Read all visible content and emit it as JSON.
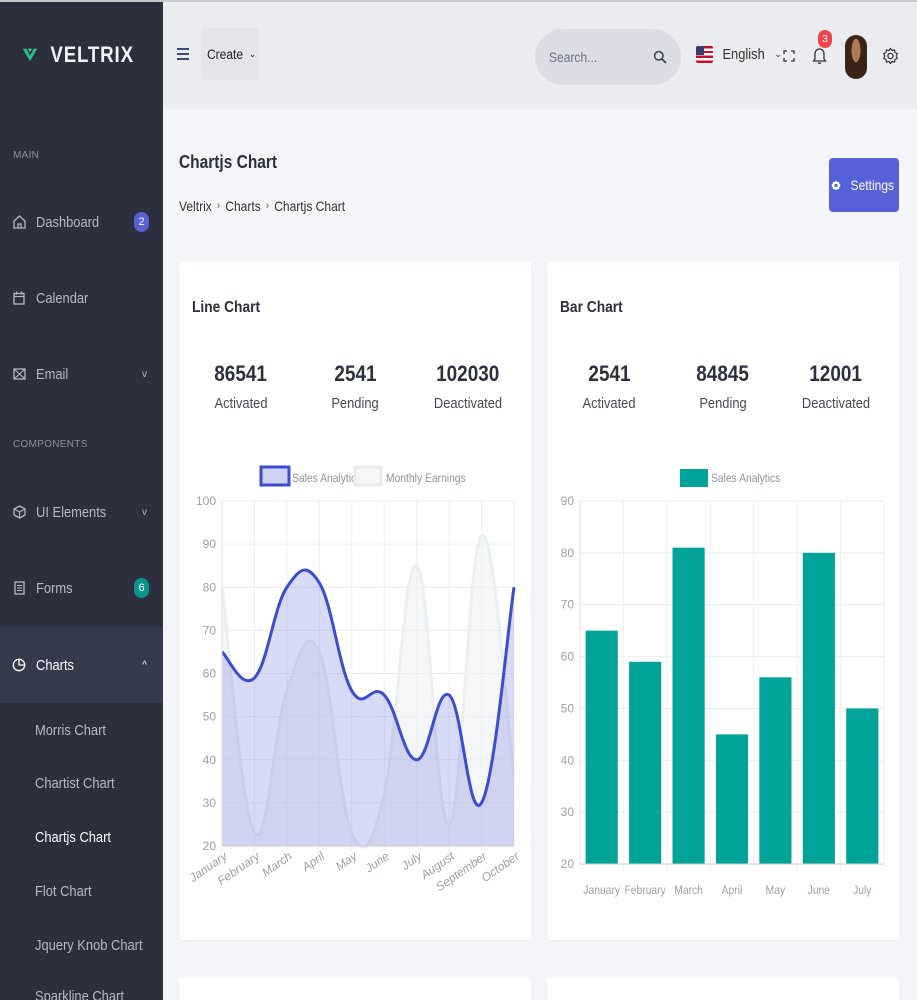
{
  "brand": {
    "name": "VELTRIX"
  },
  "sidebar": {
    "sections": [
      {
        "title": "MAIN"
      },
      {
        "title": "COMPONENTS"
      }
    ],
    "items": [
      {
        "label": "Dashboard",
        "icon": "home-icon",
        "badge": "2",
        "badge_color": "#5661d8"
      },
      {
        "label": "Calendar",
        "icon": "calendar-icon"
      },
      {
        "label": "Email",
        "icon": "mail-icon",
        "chevron": "v"
      },
      {
        "label": "UI Elements",
        "icon": "box-icon",
        "chevron": "v"
      },
      {
        "label": "Forms",
        "icon": "form-icon",
        "badge": "6",
        "badge_color": "#0d9488"
      },
      {
        "label": "Charts",
        "icon": "pie-chart-icon",
        "chevron": "^"
      }
    ],
    "sub_items": [
      {
        "label": "Morris Chart"
      },
      {
        "label": "Chartist Chart"
      },
      {
        "label": "Chartjs Chart"
      },
      {
        "label": "Flot Chart"
      },
      {
        "label": "Jquery Knob Chart"
      },
      {
        "label": "Sparkline Chart"
      }
    ]
  },
  "header": {
    "create_label": "Create",
    "search_placeholder": "Search...",
    "language": "English",
    "notification_count": "3"
  },
  "page": {
    "title": "Chartjs Chart",
    "breadcrumb": [
      "Veltrix",
      "Charts",
      "Chartjs Chart"
    ],
    "settings_label": "Settings"
  },
  "cards": {
    "line": {
      "title": "Line Chart",
      "stats": [
        {
          "value": "86541",
          "label": "Activated"
        },
        {
          "value": "2541",
          "label": "Pending"
        },
        {
          "value": "102030",
          "label": "Deactivated"
        }
      ]
    },
    "bar": {
      "title": "Bar Chart",
      "stats": [
        {
          "value": "2541",
          "label": "Activated"
        },
        {
          "value": "84845",
          "label": "Pending"
        },
        {
          "value": "12001",
          "label": "Deactivated"
        }
      ]
    }
  },
  "colors": {
    "accent": "#5661d8",
    "sidebar_bg": "#2c2f3e",
    "line_series": "#3c4ccf",
    "line_fill": "#d7dbf4",
    "bar_series": "#02a499",
    "notification": "#f0454b"
  },
  "chart_data": [
    {
      "type": "line",
      "categories": [
        "January",
        "February",
        "March",
        "April",
        "May",
        "June",
        "July",
        "August",
        "September",
        "October"
      ],
      "series": [
        {
          "name": "Sales Analytics",
          "values": [
            65,
            59,
            80,
            81,
            56,
            55,
            40,
            55,
            30,
            80
          ],
          "color": "#3c4ccf"
        },
        {
          "name": "Monthly Earnings",
          "values": [
            80,
            23,
            56,
            65,
            23,
            32,
            85,
            25,
            92,
            36
          ],
          "color": "#ebeff2"
        }
      ],
      "ylim": [
        20,
        100
      ],
      "yticks": [
        20,
        30,
        40,
        50,
        60,
        70,
        80,
        90,
        100
      ],
      "legend": "top-center",
      "grid": true
    },
    {
      "type": "bar",
      "categories": [
        "January",
        "February",
        "March",
        "April",
        "May",
        "June",
        "July"
      ],
      "series": [
        {
          "name": "Sales Analytics",
          "values": [
            65,
            59,
            81,
            45,
            56,
            80,
            50
          ],
          "color": "#02a499"
        }
      ],
      "ylim": [
        20,
        90
      ],
      "yticks": [
        20,
        30,
        40,
        50,
        60,
        70,
        80,
        90
      ],
      "legend": "top-center",
      "grid": true
    }
  ]
}
